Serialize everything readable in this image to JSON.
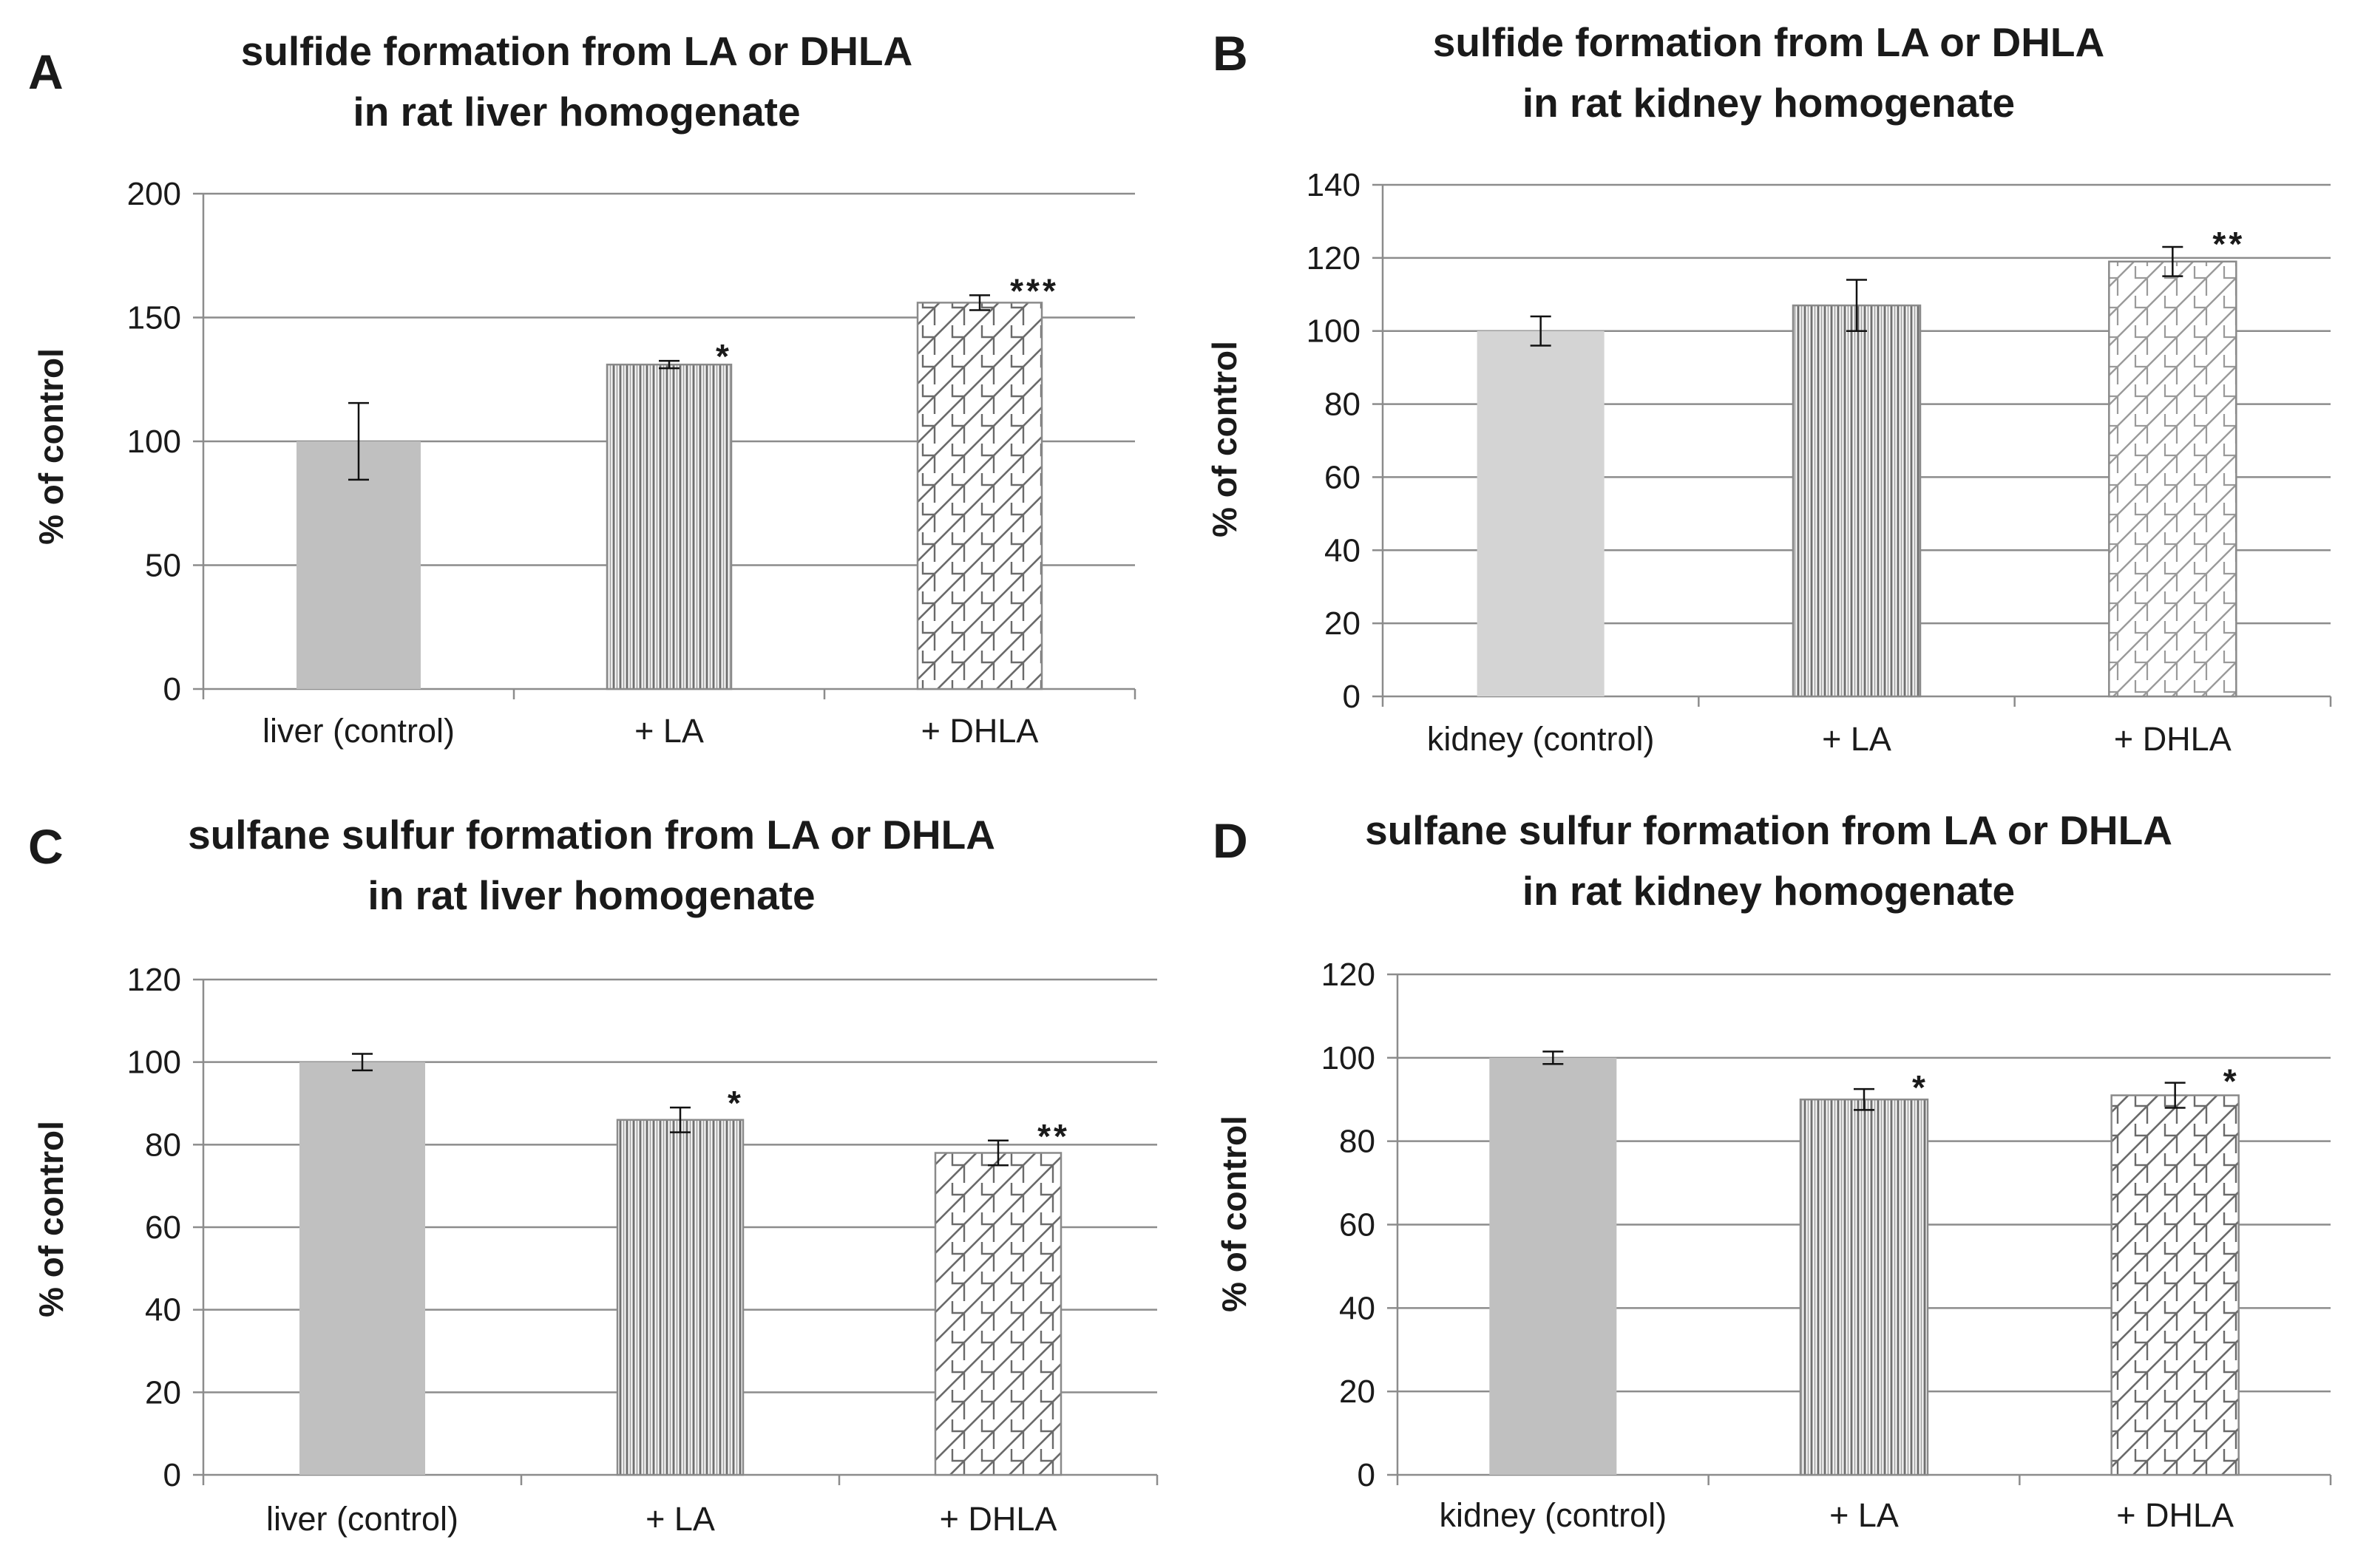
{
  "colors": {
    "bar_fill": "#c0c0c0",
    "bar_fill_light": "#d4d4d4",
    "pattern_line": "#707070",
    "gridline": "#8c8c8c",
    "axis": "#8c8c8c",
    "text": "#1a1a1a",
    "error_bar": "#111111"
  },
  "chart_data": [
    {
      "panel": "A",
      "type": "bar",
      "title_lines": [
        "sulfide formation from LA or DHLA",
        "in rat liver homogenate"
      ],
      "ylabel": "% of control",
      "xlabel": "",
      "categories": [
        "liver (control)",
        "+ LA",
        "+ DHLA"
      ],
      "values": [
        100,
        131,
        156
      ],
      "errors": [
        15.5,
        1.5,
        3
      ],
      "significance": [
        "",
        "*",
        "***"
      ],
      "patterns": [
        "solid",
        "vertical",
        "crosshatch"
      ],
      "ylim": [
        0,
        200
      ],
      "yticks": [
        0,
        50,
        100,
        150,
        200
      ],
      "grid": true
    },
    {
      "panel": "B",
      "type": "bar",
      "title_lines": [
        "sulfide formation from LA or DHLA",
        "in rat kidney homogenate"
      ],
      "ylabel": "% of control",
      "xlabel": "",
      "categories": [
        "kidney (control)",
        "+ LA",
        "+ DHLA"
      ],
      "values": [
        100,
        107,
        119
      ],
      "errors": [
        4,
        7,
        4
      ],
      "significance": [
        "",
        "",
        "**"
      ],
      "patterns": [
        "solid-light",
        "vertical",
        "crosshatch-light"
      ],
      "ylim": [
        0,
        140
      ],
      "yticks": [
        0,
        20,
        40,
        60,
        80,
        100,
        120,
        140
      ],
      "grid": true
    },
    {
      "panel": "C",
      "type": "bar",
      "title_lines": [
        "sulfane sulfur formation from LA or DHLA",
        "in rat liver homogenate"
      ],
      "ylabel": "% of control",
      "xlabel": "",
      "categories": [
        "liver (control)",
        "+ LA",
        "+ DHLA"
      ],
      "values": [
        100,
        86,
        78
      ],
      "errors": [
        2,
        3,
        3
      ],
      "significance": [
        "",
        "*",
        "**"
      ],
      "patterns": [
        "solid",
        "vertical",
        "crosshatch"
      ],
      "ylim": [
        0,
        120
      ],
      "yticks": [
        0,
        20,
        40,
        60,
        80,
        100,
        120
      ],
      "grid": true
    },
    {
      "panel": "D",
      "type": "bar",
      "title_lines": [
        "sulfane sulfur formation from LA or DHLA",
        "in rat kidney homogenate"
      ],
      "ylabel": "% of control",
      "xlabel": "",
      "categories": [
        "kidney (control)",
        "+ LA",
        "+ DHLA"
      ],
      "values": [
        100,
        90,
        91
      ],
      "errors": [
        1.5,
        2.5,
        3
      ],
      "significance": [
        "",
        "*",
        "*"
      ],
      "patterns": [
        "solid",
        "vertical",
        "crosshatch"
      ],
      "ylim": [
        0,
        120
      ],
      "yticks": [
        0,
        20,
        40,
        60,
        80,
        100,
        120
      ],
      "grid": true
    }
  ]
}
